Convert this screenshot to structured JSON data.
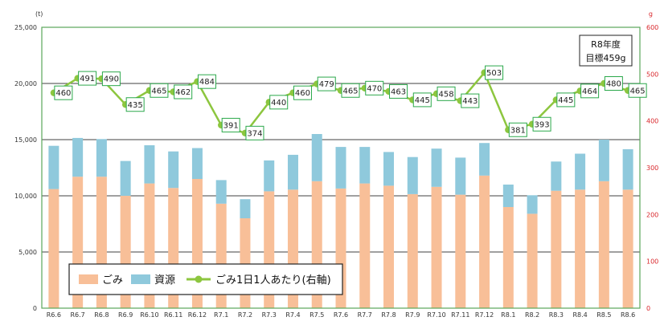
{
  "chart_data": {
    "type": "bar",
    "stacked": true,
    "categories": [
      "R6.6",
      "R6.7",
      "R6.8",
      "R6.9",
      "R6.10",
      "R6.11",
      "R6.12",
      "R7.1",
      "R7.2",
      "R7.3",
      "R7.4",
      "R7.5",
      "R7.6",
      "R7.7",
      "R7.8",
      "R7.9",
      "R7.10",
      "R7.11",
      "R7.12",
      "R8.1",
      "R8.2",
      "R8.3",
      "R8.4",
      "R8.5",
      "R8.6"
    ],
    "series": [
      {
        "name": "ごみ",
        "type": "bar",
        "axis": "left",
        "color": "#f8bf98",
        "values": [
          10600,
          11700,
          11700,
          10000,
          11100,
          10700,
          11500,
          9300,
          8000,
          10400,
          10550,
          11300,
          10650,
          11100,
          10900,
          10150,
          10800,
          10100,
          11800,
          9000,
          8400,
          10450,
          10550,
          11300,
          10550
        ]
      },
      {
        "name": "資源",
        "type": "bar",
        "axis": "left",
        "color": "#8fc9dc",
        "values": [
          3850,
          3450,
          3350,
          3100,
          3400,
          3250,
          2750,
          2100,
          1700,
          2750,
          3100,
          4200,
          3700,
          3250,
          3000,
          3300,
          3400,
          3300,
          2900,
          2000,
          1650,
          2600,
          3200,
          3700,
          3600
        ]
      },
      {
        "name": "ごみ1日1人あたり(右軸)",
        "type": "line",
        "axis": "right",
        "color": "#8dc63f",
        "values": [
          460,
          491,
          490,
          435,
          465,
          462,
          484,
          391,
          374,
          440,
          460,
          479,
          465,
          470,
          463,
          445,
          458,
          443,
          503,
          381,
          393,
          445,
          464,
          480,
          465
        ]
      }
    ],
    "left_axis": {
      "unit": "(t)",
      "ylim": [
        0,
        25000
      ],
      "ticks": [
        "0",
        "5,000",
        "10,000",
        "15,000",
        "20,000",
        "25,000"
      ]
    },
    "right_axis": {
      "unit": "g",
      "ylim": [
        0,
        600
      ],
      "ticks": [
        "0",
        "100",
        "200",
        "300",
        "400",
        "500",
        "600"
      ]
    },
    "target_box": {
      "line1": "R8年度",
      "line2": "目標459g"
    },
    "legend": {
      "position": "bottom-left"
    },
    "colors": {
      "axis_right": "#d9262b",
      "label_box_border": "#2aa84a",
      "grid": "#000000",
      "plot_border": "#5aa65a"
    }
  }
}
